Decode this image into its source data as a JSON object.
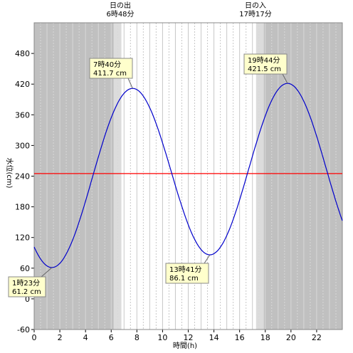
{
  "chart_data": {
    "type": "line",
    "xlabel": "時間(h)",
    "ylabel": "水位(cm)",
    "xlim": [
      0,
      24
    ],
    "ylim": [
      -60,
      540
    ],
    "x_ticks": [
      0,
      2,
      4,
      6,
      8,
      10,
      12,
      14,
      16,
      18,
      20,
      22
    ],
    "y_ticks": [
      -60,
      0,
      60,
      120,
      180,
      240,
      300,
      360,
      420,
      480
    ],
    "reference_line": {
      "value": 245,
      "color": "#ff0000"
    },
    "sunrise": {
      "title": "日の出",
      "time": "6時48分",
      "hour": 6.8
    },
    "sunset": {
      "title": "日の入",
      "time": "17時17分",
      "hour": 17.283
    },
    "colors": {
      "night": "#c0c0c0",
      "twilight": "#dcdcdc",
      "day": "#ffffff",
      "line": "#0000cc",
      "annotation_bg": "#ffffcc"
    },
    "extrema": [
      {
        "kind": "low",
        "hour": 1.383,
        "level": 61.2,
        "time_label": "1時23分",
        "level_label": "61.2 cm"
      },
      {
        "kind": "high",
        "hour": 7.667,
        "level": 411.7,
        "time_label": "7時40分",
        "level_label": "411.7 cm"
      },
      {
        "kind": "low",
        "hour": 13.683,
        "level": 86.1,
        "time_label": "13時41分",
        "level_label": "86.1 cm"
      },
      {
        "kind": "high",
        "hour": 19.733,
        "level": 421.5,
        "time_label": "19時44分",
        "level_label": "421.5 cm"
      }
    ],
    "series": [
      {
        "x": [
          0,
          1.383,
          7.667,
          13.683,
          19.733,
          24
        ],
        "values": [
          105,
          61.2,
          411.7,
          86.1,
          421.5,
          132
        ]
      }
    ]
  }
}
